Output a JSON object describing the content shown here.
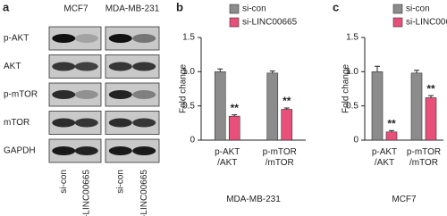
{
  "blot": {
    "label": "a",
    "cell_lines": [
      "MCF7",
      "MDA-MB-231"
    ],
    "proteins": [
      "p-AKT",
      "AKT",
      "p-mTOR",
      "mTOR",
      "GAPDH"
    ],
    "conditions": [
      "si-con",
      "si-LINC00665"
    ]
  },
  "chart_data": [
    {
      "type": "bar",
      "label": "b",
      "ylabel": "Fold change",
      "xlabel": "MDA-MB-231",
      "categories": [
        "p-AKT\n/AKT",
        "p-mTOR\n/mTOR"
      ],
      "ylim": [
        0,
        1.5
      ],
      "yticks": [
        0,
        0.5,
        {
          "value": 1,
          "label": "1.0"
        },
        1.5
      ],
      "series": [
        {
          "name": "si-con",
          "color": "#8c8c8c",
          "values": [
            1.0,
            0.98
          ],
          "errors": [
            0.04,
            0.03
          ]
        },
        {
          "name": "si-LINC00665",
          "color": "#e8507a",
          "values": [
            0.35,
            0.45
          ],
          "errors": [
            0.02,
            0.02
          ],
          "annotations": [
            "**",
            "**"
          ]
        }
      ]
    },
    {
      "type": "bar",
      "label": "c",
      "ylabel": "Fold change",
      "xlabel": "MCF7",
      "categories": [
        "p-AKT\n/AKT",
        "p-mTOR\n/mTOR"
      ],
      "ylim": [
        0,
        1.5
      ],
      "yticks": [
        0,
        0.5,
        {
          "value": 1,
          "label": "1.0"
        },
        1.5
      ],
      "series": [
        {
          "name": "si-con",
          "color": "#8c8c8c",
          "values": [
            1.0,
            0.98
          ],
          "errors": [
            0.08,
            0.04
          ]
        },
        {
          "name": "si-LINC00665",
          "color": "#e8507a",
          "values": [
            0.12,
            0.62
          ],
          "errors": [
            0.02,
            0.03
          ],
          "annotations": [
            "**",
            "**"
          ]
        }
      ]
    }
  ]
}
